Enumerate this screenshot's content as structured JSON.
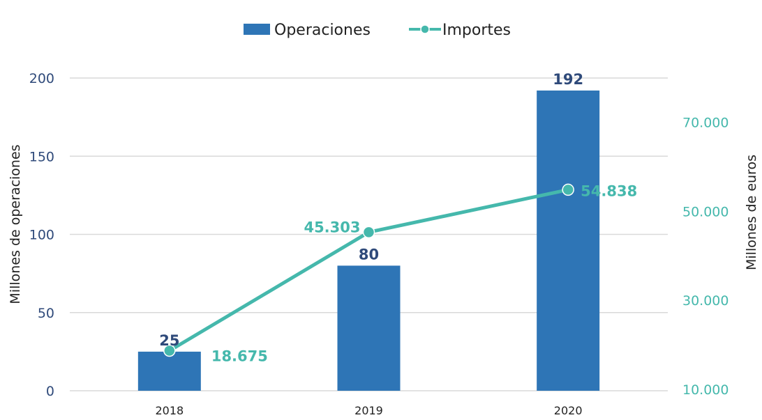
{
  "chart_data": {
    "type": "bar",
    "categories": [
      "2018",
      "2019",
      "2020"
    ],
    "series": [
      {
        "name": "Operaciones",
        "kind": "bar",
        "axis": "left",
        "values": [
          25,
          80,
          192
        ],
        "labels": [
          "25",
          "80",
          "192"
        ]
      },
      {
        "name": "Importes",
        "kind": "line",
        "axis": "right",
        "values": [
          18675,
          45303,
          54838
        ],
        "labels": [
          "18.675",
          "45.303",
          "54.838"
        ]
      }
    ],
    "ylabel": "Millones de operaciones",
    "y2label": "Millones de euros",
    "ylim": [
      0,
      200
    ],
    "yticks": [
      0,
      50,
      100,
      150,
      200
    ],
    "ytick_labels": [
      "0",
      "50",
      "100",
      "150",
      "200"
    ],
    "y2lim": [
      10000,
      80000
    ],
    "y2ticks": [
      10000,
      30000,
      50000,
      70000
    ],
    "y2tick_labels": [
      "10.000",
      "30.000",
      "50.000",
      "70.000"
    ],
    "grid": true,
    "legend_position": "top-center",
    "colors": {
      "bar": "#2e75b6",
      "line": "#45b8ac",
      "bar_label": "#2f4a7a",
      "left_axis_text": "#2f4a7a",
      "grid": "#d9d9d9"
    }
  }
}
